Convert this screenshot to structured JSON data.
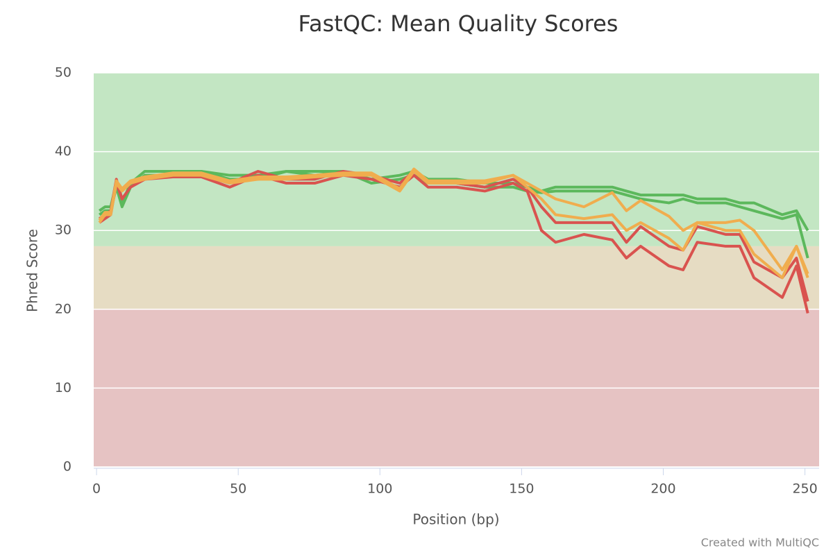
{
  "chart_data": {
    "type": "line",
    "title": "FastQC: Mean Quality Scores",
    "x_label": "Position (bp)",
    "y_label": "Phred Score",
    "credit": "Created with MultiQC",
    "xlim": [
      -1,
      255
    ],
    "ylim": [
      0,
      50
    ],
    "xticks": [
      0,
      50,
      100,
      150,
      200,
      250
    ],
    "yticks": [
      0,
      10,
      20,
      30,
      40,
      50
    ],
    "grid": true,
    "bands": [
      {
        "from": 28,
        "to": 50,
        "color": "#c3e6c3"
      },
      {
        "from": 20,
        "to": 28,
        "color": "#e6dcc3"
      },
      {
        "from": 0,
        "to": 20,
        "color": "#e6c3c3"
      }
    ],
    "x": [
      1,
      3,
      5,
      7,
      9,
      12,
      17,
      27,
      37,
      47,
      57,
      67,
      77,
      87,
      97,
      107,
      112,
      117,
      127,
      137,
      147,
      152,
      157,
      162,
      172,
      182,
      187,
      192,
      202,
      207,
      212,
      222,
      227,
      232,
      242,
      247,
      251
    ],
    "series": [
      {
        "color": "#5cb85c",
        "values": [
          32.5,
          33,
          33,
          36,
          33.5,
          36,
          37.5,
          37.5,
          37.5,
          37,
          37,
          37.5,
          37.5,
          37.5,
          36.5,
          37,
          37.5,
          36.5,
          36.5,
          36,
          36,
          35.5,
          35,
          35.5,
          35.5,
          35.5,
          35,
          34.5,
          34.5,
          34.5,
          34,
          34,
          33.5,
          33.5,
          32,
          32.5,
          30
        ]
      },
      {
        "color": "#5cb85c",
        "values": [
          32,
          32.5,
          32.5,
          35.5,
          33,
          35.5,
          37,
          37,
          37.5,
          36.5,
          36.5,
          37.5,
          37,
          37.5,
          36,
          36.5,
          37,
          36,
          36,
          35.5,
          35.5,
          35,
          34.8,
          35,
          35,
          35,
          34.5,
          34,
          33.5,
          34,
          33.5,
          33.5,
          33,
          32.5,
          31.5,
          32,
          26.5
        ]
      },
      {
        "color": "#d9534f",
        "values": [
          31.5,
          32,
          32.5,
          36.5,
          34,
          35.5,
          36.5,
          37,
          37,
          36,
          37.5,
          36.5,
          36.5,
          37.5,
          37,
          36,
          37.5,
          36,
          36,
          35.5,
          36.5,
          35.5,
          33,
          31,
          31,
          31,
          28.5,
          30.5,
          28,
          27.5,
          30.5,
          29.5,
          29.5,
          26,
          24,
          26.5,
          21
        ]
      },
      {
        "color": "#d9534f",
        "values": [
          31,
          31.5,
          32,
          36,
          34,
          35.5,
          36.5,
          36.8,
          36.8,
          35.5,
          37,
          36,
          36,
          37,
          36.5,
          35.5,
          37,
          35.5,
          35.5,
          35,
          36,
          35,
          30,
          28.5,
          29.5,
          28.8,
          26.5,
          28,
          25.5,
          25,
          28.5,
          28,
          28,
          24,
          21.5,
          25.5,
          19.5
        ]
      },
      {
        "color": "#f0ad4e",
        "values": [
          31,
          32,
          32,
          36,
          35,
          36,
          36.5,
          37,
          37,
          36,
          36.5,
          36.5,
          36.8,
          37,
          37,
          35,
          37.5,
          36,
          36,
          36,
          37,
          35.5,
          34,
          32,
          31.5,
          32,
          30,
          31,
          29,
          27.5,
          31,
          30,
          30,
          27,
          24,
          28,
          24.5
        ]
      },
      {
        "color": "#f0ad4e",
        "values": [
          31.3,
          32.3,
          32.3,
          36.3,
          35.3,
          36.3,
          36.8,
          37.3,
          37.3,
          36.3,
          36.8,
          36.8,
          37,
          37.3,
          37.3,
          35.3,
          37.8,
          36.3,
          36.3,
          36.3,
          37,
          36,
          35,
          34,
          33,
          34.8,
          32.5,
          33.8,
          31.8,
          30,
          31,
          31,
          31.3,
          30,
          25,
          28,
          24
        ]
      }
    ]
  }
}
